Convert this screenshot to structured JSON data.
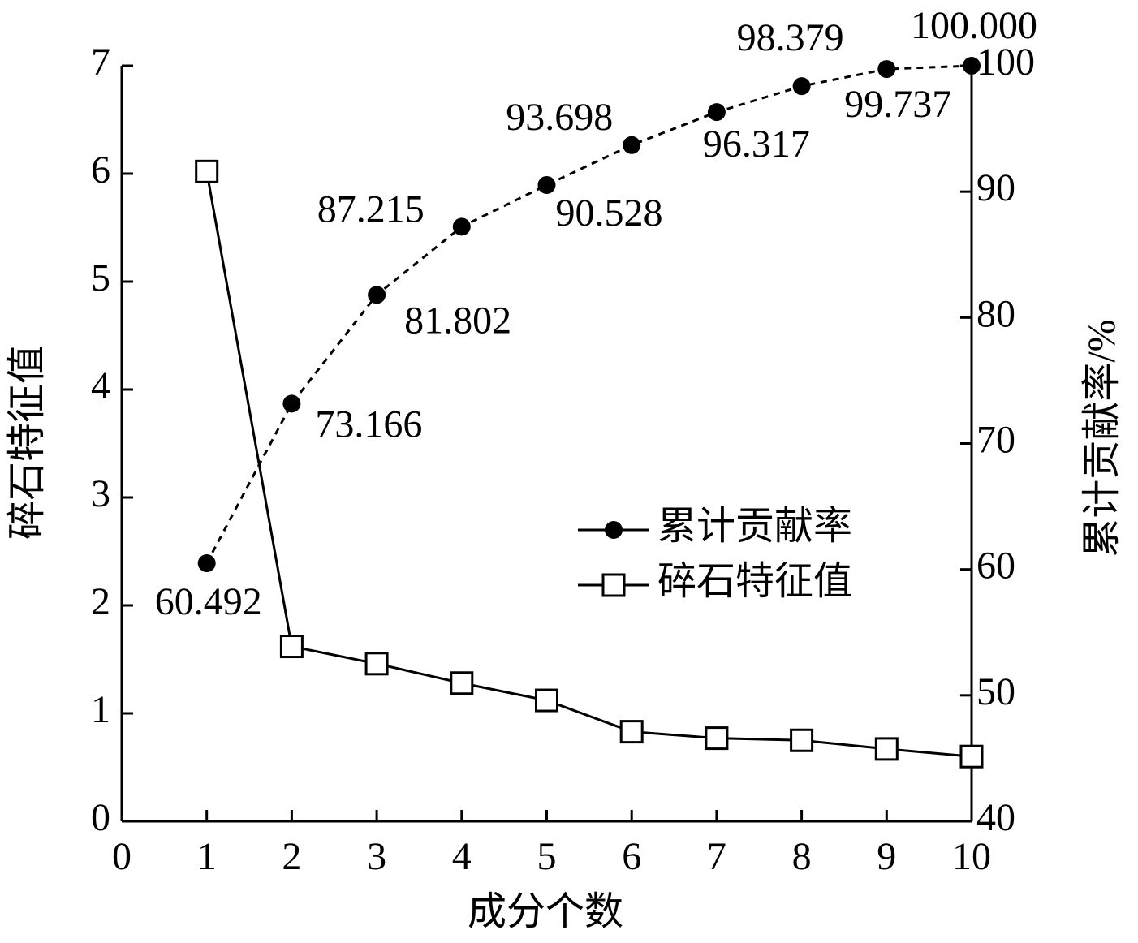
{
  "chart_data": {
    "type": "line",
    "x_label": "成分个数",
    "y_label": "碎石特征值",
    "y2_label": "累计贡献率/%",
    "x": [
      1,
      2,
      3,
      4,
      5,
      6,
      7,
      8,
      9,
      10
    ],
    "xlim": [
      0,
      10
    ],
    "xticks": [
      0,
      1,
      2,
      3,
      4,
      5,
      6,
      7,
      8,
      9,
      10
    ],
    "ylim": [
      0,
      7
    ],
    "yticks": [
      0,
      1,
      2,
      3,
      4,
      5,
      6,
      7
    ],
    "y2lim": [
      40,
      100
    ],
    "y2ticks": [
      40,
      50,
      60,
      70,
      80,
      90,
      100
    ],
    "legend": "right",
    "series": [
      {
        "name": "累计贡献率",
        "color": "#000000",
        "axis": "y2",
        "marker": "circle",
        "dashed": true,
        "values": [
          60.492,
          73.166,
          81.802,
          87.215,
          90.528,
          93.698,
          96.317,
          98.379,
          99.737,
          100.0
        ],
        "value_labels": [
          "60.492",
          "73.166",
          "81.802",
          "87.215",
          "90.528",
          "93.698",
          "96.317",
          "98.379",
          "99.737",
          "100.000"
        ]
      },
      {
        "name": "碎石特征值",
        "color": "#000000",
        "marker": "square",
        "dashed": false,
        "values": [
          6.02,
          1.62,
          1.46,
          1.28,
          1.12,
          0.83,
          0.77,
          0.75,
          0.67,
          0.6
        ]
      }
    ]
  }
}
